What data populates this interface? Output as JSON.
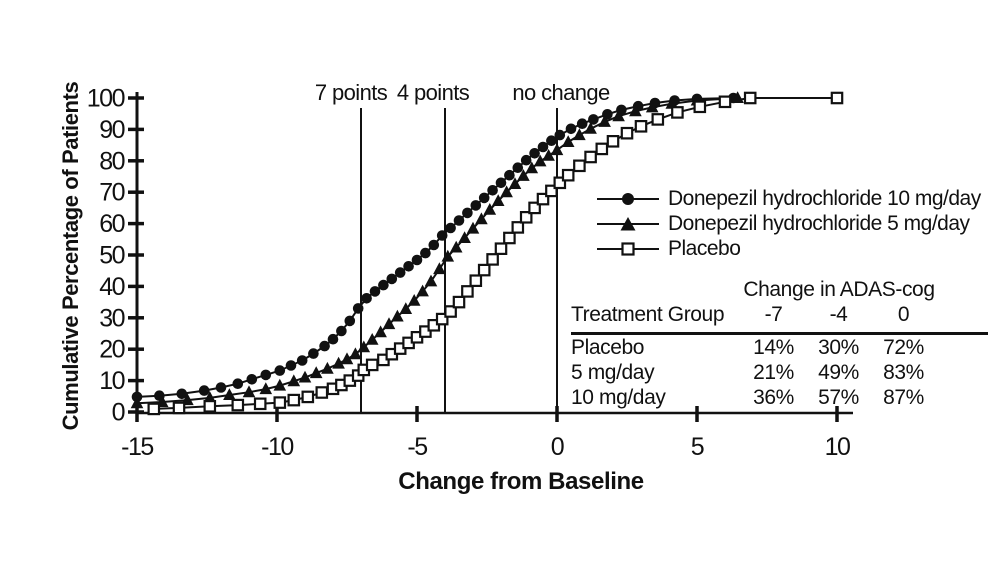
{
  "figure": {
    "background": "#ffffff",
    "ink_color": "#111111"
  },
  "chart_data": {
    "type": "line",
    "title": "",
    "xlabel": "Change from Baseline",
    "ylabel": "Cumulative Percentage of Patients",
    "xlim": [
      -15,
      10
    ],
    "ylim": [
      0,
      100
    ],
    "x_ticks": [
      -15,
      -10,
      -5,
      0,
      5,
      10
    ],
    "y_ticks": [
      0,
      10,
      20,
      30,
      40,
      50,
      60,
      70,
      80,
      90,
      100
    ],
    "grid": false,
    "legend_position": "right-middle",
    "ref_lines": [
      {
        "x": -7,
        "label": "7 points"
      },
      {
        "x": -4,
        "label": "4 points"
      },
      {
        "x": 0,
        "label": "no change"
      }
    ],
    "series": [
      {
        "name": "Donepezil hydrochloride 10 mg/day",
        "marker": "filled-circle",
        "points": [
          [
            -15,
            4.8
          ],
          [
            -14.2,
            5.2
          ],
          [
            -13.4,
            5.8
          ],
          [
            -12.6,
            6.8
          ],
          [
            -12,
            7.8
          ],
          [
            -11.4,
            9
          ],
          [
            -10.9,
            10.4
          ],
          [
            -10.4,
            11.8
          ],
          [
            -9.9,
            13.2
          ],
          [
            -9.5,
            14.8
          ],
          [
            -9.1,
            16.4
          ],
          [
            -8.7,
            18.6
          ],
          [
            -8.3,
            21
          ],
          [
            -8,
            23.2
          ],
          [
            -7.7,
            25.8
          ],
          [
            -7.4,
            29
          ],
          [
            -7.1,
            33
          ],
          [
            -6.8,
            36.2
          ],
          [
            -6.5,
            38.4
          ],
          [
            -6.2,
            40.4
          ],
          [
            -5.9,
            42.4
          ],
          [
            -5.6,
            44.4
          ],
          [
            -5.3,
            46.4
          ],
          [
            -5,
            48.4
          ],
          [
            -4.7,
            50.6
          ],
          [
            -4.4,
            53.2
          ],
          [
            -4.1,
            56.2
          ],
          [
            -3.8,
            58.6
          ],
          [
            -3.5,
            61
          ],
          [
            -3.2,
            63.4
          ],
          [
            -2.9,
            65.8
          ],
          [
            -2.6,
            68.2
          ],
          [
            -2.3,
            70.6
          ],
          [
            -2,
            73
          ],
          [
            -1.7,
            75.4
          ],
          [
            -1.4,
            77.8
          ],
          [
            -1.1,
            80.2
          ],
          [
            -0.8,
            82.4
          ],
          [
            -0.5,
            84.4
          ],
          [
            -0.2,
            86.4
          ],
          [
            0.1,
            88.2
          ],
          [
            0.5,
            90.2
          ],
          [
            0.9,
            91.8
          ],
          [
            1.3,
            93.2
          ],
          [
            1.8,
            94.8
          ],
          [
            2.3,
            96.2
          ],
          [
            2.9,
            97.4
          ],
          [
            3.5,
            98.4
          ],
          [
            4.2,
            99.2
          ],
          [
            5,
            99.7
          ],
          [
            6.3,
            100
          ]
        ]
      },
      {
        "name": "Donepezil hydrochloride 5 mg/day",
        "marker": "filled-triangle",
        "points": [
          [
            -15,
            2.8
          ],
          [
            -14.1,
            3.2
          ],
          [
            -13.2,
            3.8
          ],
          [
            -12.4,
            4.5
          ],
          [
            -11.7,
            5.4
          ],
          [
            -11,
            6.3
          ],
          [
            -10.4,
            7.3
          ],
          [
            -9.9,
            8.4
          ],
          [
            -9.4,
            9.8
          ],
          [
            -9,
            11
          ],
          [
            -8.6,
            12.4
          ],
          [
            -8.2,
            13.8
          ],
          [
            -7.8,
            15.4
          ],
          [
            -7.5,
            16.8
          ],
          [
            -7.2,
            18.4
          ],
          [
            -6.9,
            20.6
          ],
          [
            -6.6,
            23
          ],
          [
            -6.3,
            25.4
          ],
          [
            -6,
            28
          ],
          [
            -5.7,
            30.4
          ],
          [
            -5.4,
            32.8
          ],
          [
            -5.1,
            35.4
          ],
          [
            -4.8,
            38.4
          ],
          [
            -4.5,
            41.6
          ],
          [
            -4.2,
            45.5
          ],
          [
            -3.9,
            49.5
          ],
          [
            -3.6,
            52.4
          ],
          [
            -3.3,
            55.4
          ],
          [
            -3,
            58.4
          ],
          [
            -2.7,
            61.4
          ],
          [
            -2.4,
            64.4
          ],
          [
            -2.1,
            67.2
          ],
          [
            -1.8,
            70
          ],
          [
            -1.5,
            72.6
          ],
          [
            -1.2,
            75.2
          ],
          [
            -0.9,
            77.6
          ],
          [
            -0.6,
            79.8
          ],
          [
            -0.3,
            81.6
          ],
          [
            0,
            83.4
          ],
          [
            0.4,
            86
          ],
          [
            0.8,
            88.2
          ],
          [
            1.2,
            90.2
          ],
          [
            1.7,
            92.4
          ],
          [
            2.2,
            94.2
          ],
          [
            2.8,
            95.8
          ],
          [
            3.4,
            97
          ],
          [
            4.1,
            98.2
          ],
          [
            5,
            99.2
          ],
          [
            6.45,
            100
          ]
        ]
      },
      {
        "name": "Placebo",
        "marker": "open-square",
        "points": [
          [
            -14.4,
            1
          ],
          [
            -13.5,
            1.3
          ],
          [
            -12.4,
            1.8
          ],
          [
            -11.4,
            2.2
          ],
          [
            -10.6,
            2.6
          ],
          [
            -9.9,
            3
          ],
          [
            -9.4,
            3.8
          ],
          [
            -8.9,
            4.8
          ],
          [
            -8.4,
            6.2
          ],
          [
            -8,
            7.4
          ],
          [
            -7.7,
            8.6
          ],
          [
            -7.4,
            10
          ],
          [
            -7.1,
            11.6
          ],
          [
            -6.9,
            13.4
          ],
          [
            -6.6,
            15
          ],
          [
            -6.2,
            16.6
          ],
          [
            -5.9,
            18.4
          ],
          [
            -5.6,
            20.2
          ],
          [
            -5.3,
            22
          ],
          [
            -5,
            23.8
          ],
          [
            -4.7,
            25.6
          ],
          [
            -4.4,
            27.6
          ],
          [
            -4.1,
            29.6
          ],
          [
            -3.8,
            32
          ],
          [
            -3.5,
            35
          ],
          [
            -3.2,
            38.4
          ],
          [
            -2.9,
            41.8
          ],
          [
            -2.6,
            45.2
          ],
          [
            -2.3,
            48.6
          ],
          [
            -2,
            52
          ],
          [
            -1.7,
            55.4
          ],
          [
            -1.4,
            58.8
          ],
          [
            -1.1,
            62
          ],
          [
            -0.8,
            65
          ],
          [
            -0.5,
            67.8
          ],
          [
            -0.2,
            70.4
          ],
          [
            0.1,
            73
          ],
          [
            0.4,
            75.4
          ],
          [
            0.8,
            78.4
          ],
          [
            1.2,
            81.2
          ],
          [
            1.6,
            83.8
          ],
          [
            2,
            86.2
          ],
          [
            2.5,
            88.8
          ],
          [
            3,
            91
          ],
          [
            3.6,
            93.2
          ],
          [
            4.3,
            95.4
          ],
          [
            5.1,
            97.2
          ],
          [
            6,
            98.8
          ],
          [
            6.9,
            100
          ],
          [
            10,
            100
          ]
        ]
      }
    ]
  },
  "legend": {
    "items": [
      {
        "label": "Donepezil hydrochloride 10 mg/day",
        "marker": "filled-circle-icon"
      },
      {
        "label": "Donepezil hydrochloride 5 mg/day",
        "marker": "filled-triangle-icon"
      },
      {
        "label": "Placebo",
        "marker": "open-square-icon"
      }
    ]
  },
  "table": {
    "group_header": "Change in ADAS-cog",
    "col_headers": [
      "Treatment Group",
      "-7",
      "-4",
      "0"
    ],
    "rows": [
      {
        "group": "Placebo",
        "values": [
          "14%",
          "30%",
          "72%"
        ]
      },
      {
        "group": "5 mg/day",
        "values": [
          "21%",
          "49%",
          "83%"
        ]
      },
      {
        "group": "10 mg/day",
        "values": [
          "36%",
          "57%",
          "87%"
        ]
      }
    ]
  }
}
